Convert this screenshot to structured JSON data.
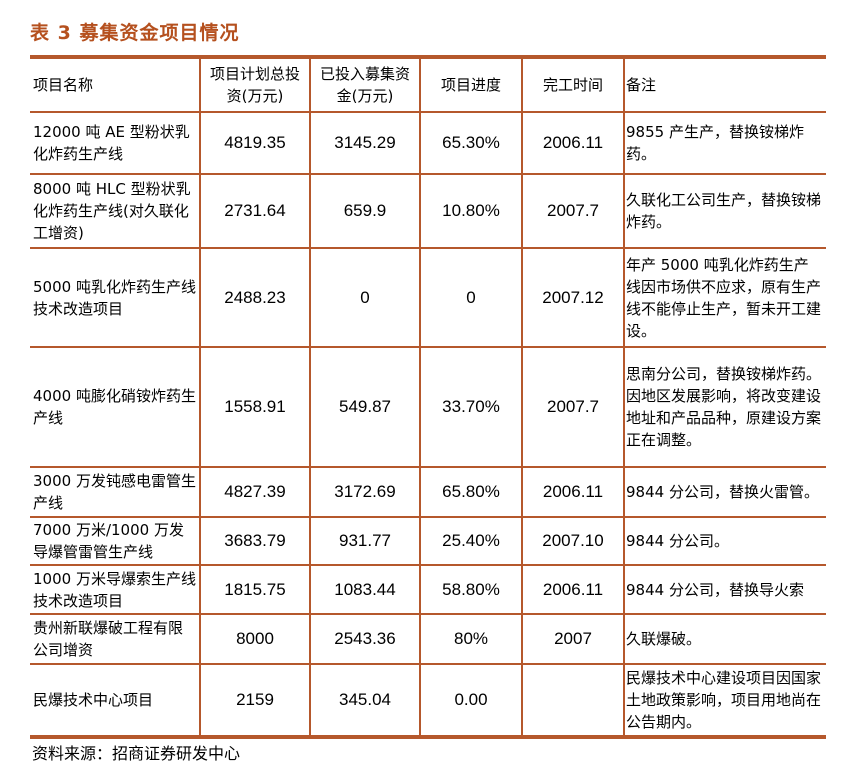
{
  "title": "表 3  募集资金项目情况",
  "headers": [
    "项目名称",
    "项目计划总投资(万元)",
    "已投入募集资金(万元)",
    "项目进度",
    "完工时间",
    "备注"
  ],
  "rows": [
    {
      "name": "12000 吨 AE 型粉状乳化炸药生产线",
      "plan": "4819.35",
      "invested": "3145.29",
      "progress": "65.30%",
      "completion": "2006.11",
      "note": "9855 产生产，替换铵梯炸药。"
    },
    {
      "name": "8000 吨 HLC 型粉状乳化炸药生产线(对久联化工增资)",
      "plan": "2731.64",
      "invested": "659.9",
      "progress": "10.80%",
      "completion": "2007.7",
      "note": "久联化工公司生产，替换铵梯炸药。"
    },
    {
      "name": "5000 吨乳化炸药生产线技术改造项目",
      "plan": "2488.23",
      "invested": "0",
      "progress": "0",
      "completion": "2007.12",
      "note": "年产 5000 吨乳化炸药生产线因市场供不应求，原有生产线不能停止生产，暂未开工建设。"
    },
    {
      "name": "4000 吨膨化硝铵炸药生产线",
      "plan": "1558.91",
      "invested": "549.87",
      "progress": "33.70%",
      "completion": "2007.7",
      "note": "思南分公司，替换铵梯炸药。因地区发展影响，将改变建设地址和产品品种，原建设方案正在调整。"
    },
    {
      "name": "3000 万发钝感电雷管生产线",
      "plan": "4827.39",
      "invested": "3172.69",
      "progress": "65.80%",
      "completion": "2006.11",
      "note": "9844 分公司，替换火雷管。"
    },
    {
      "name": "7000 万米/1000 万发导爆管雷管生产线",
      "plan": "3683.79",
      "invested": "931.77",
      "progress": "25.40%",
      "completion": "2007.10",
      "note": "9844 分公司。"
    },
    {
      "name": "1000 万米导爆索生产线技术改造项目",
      "plan": "1815.75",
      "invested": "1083.44",
      "progress": "58.80%",
      "completion": "2006.11",
      "note": "9844 分公司，替换导火索"
    },
    {
      "name": "贵州新联爆破工程有限公司增资",
      "plan": "8000",
      "invested": "2543.36",
      "progress": "80%",
      "completion": "2007",
      "note": "久联爆破。"
    },
    {
      "name": "民爆技术中心项目",
      "plan": "2159",
      "invested": "345.04",
      "progress": "0.00",
      "completion": "",
      "note": "民爆技术中心建设项目因国家土地政策影响，项目用地尚在公告期内。"
    }
  ],
  "source": "资料来源：招商证券研发中心"
}
